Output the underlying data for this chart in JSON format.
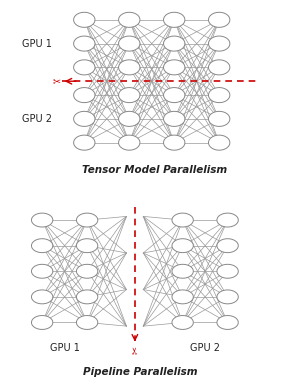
{
  "bg_color": "#ffffff",
  "node_color": "#ffffff",
  "node_edge_color": "#888888",
  "line_color": "#999999",
  "dashed_color": "#cc0000",
  "text_color": "#222222",
  "title1": "Tensor Model Parallelism",
  "title2": "Pipeline Parallelism",
  "gpu1_label": "GPU 1",
  "gpu2_label": "GPU 2",
  "title_fontsize": 7.5,
  "label_fontsize": 7.0
}
